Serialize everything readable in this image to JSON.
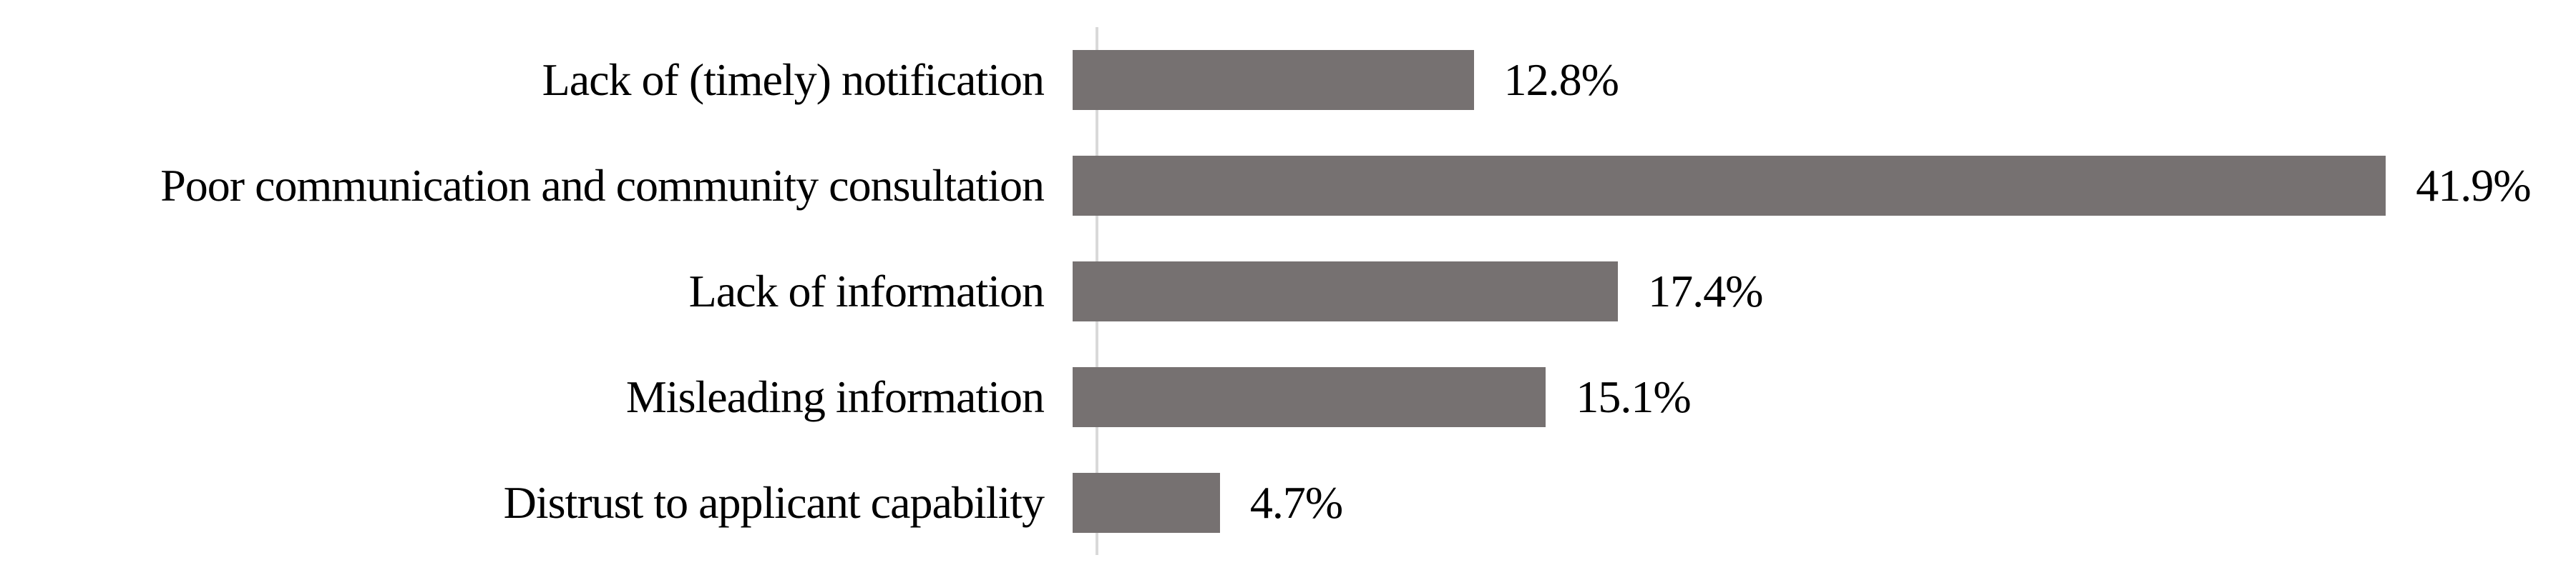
{
  "chart_data": {
    "type": "bar",
    "orientation": "horizontal",
    "title": "",
    "xlabel": "",
    "ylabel": "",
    "grid": false,
    "legend": false,
    "xlim": [
      0,
      45
    ],
    "categories": [
      "Lack of (timely) notification",
      "Poor communication and community consultation",
      "Lack of information",
      "Misleading information",
      "Distrust to applicant capability"
    ],
    "values": [
      12.8,
      41.9,
      17.4,
      15.1,
      4.7
    ],
    "value_labels": [
      "12.8%",
      "41.9%",
      "17.4%",
      "15.1%",
      "4.7%"
    ],
    "colors": {
      "bar_fill": "#767171",
      "axis_line": "#d9d9d9",
      "text": "#000000",
      "background": "#ffffff"
    }
  }
}
